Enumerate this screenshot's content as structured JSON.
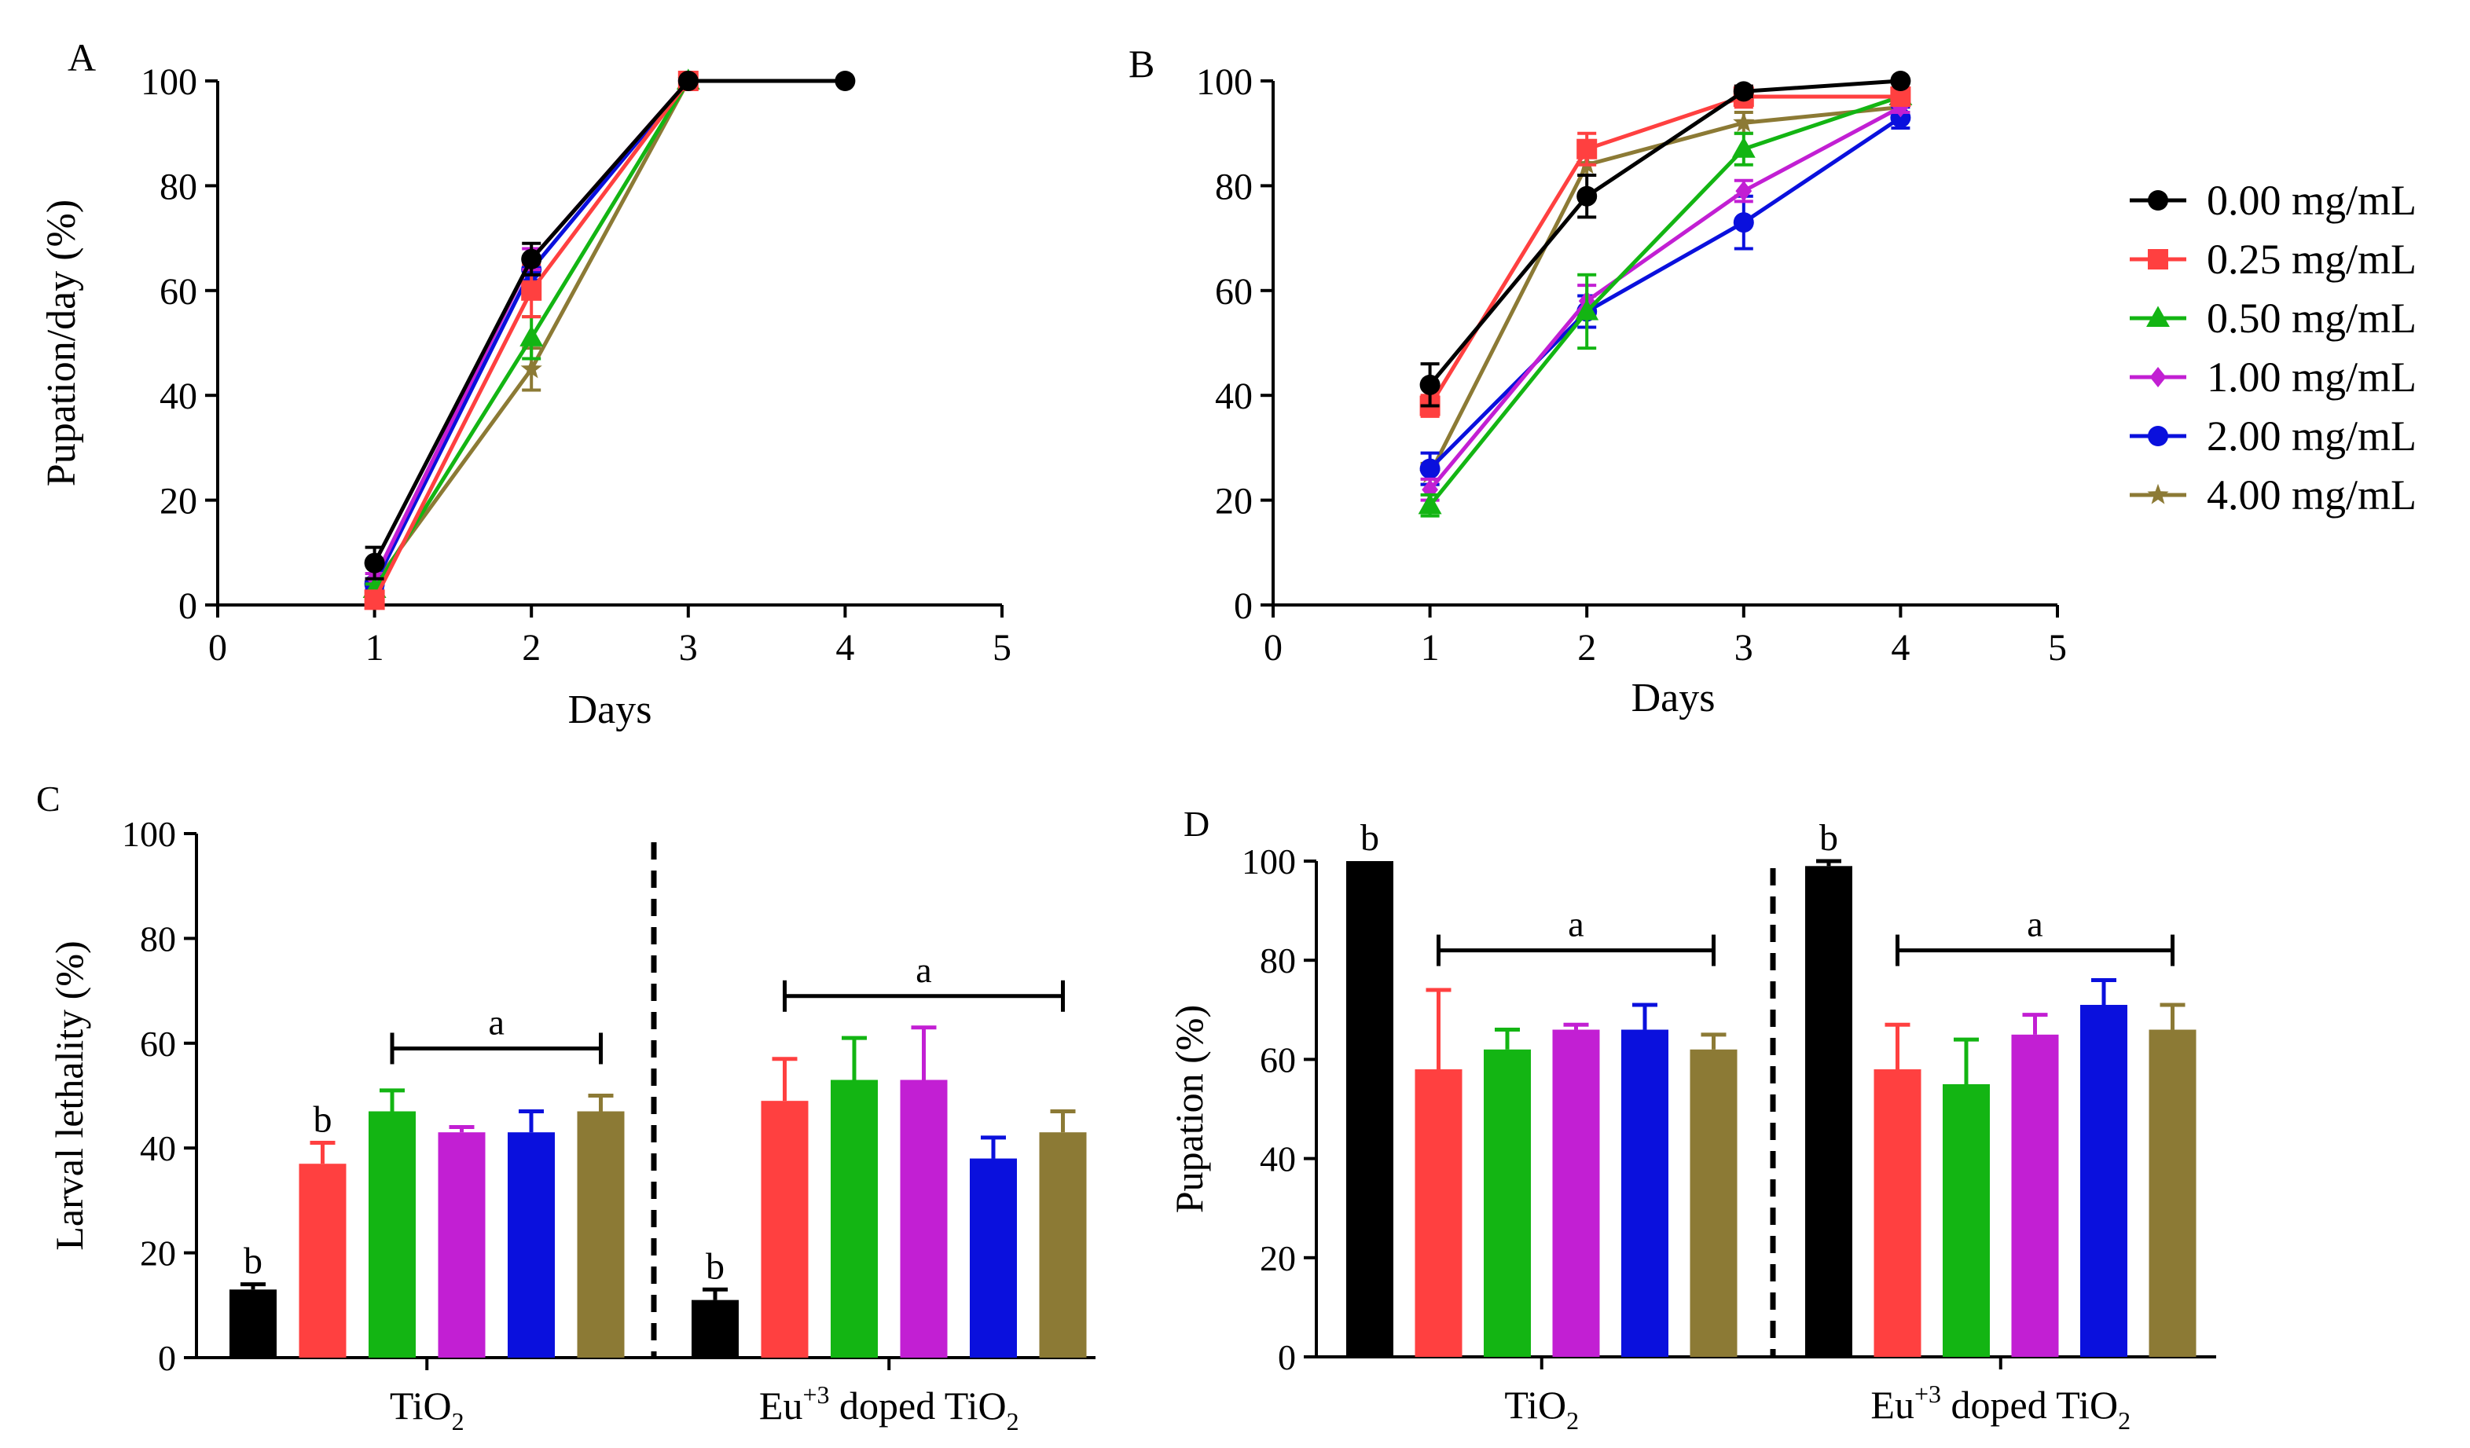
{
  "colors": {
    "0.00 mg/mL": "#000000",
    "0.25 mg/mL": "#ff4040",
    "0.50 mg/mL": "#13b513",
    "1.00 mg/mL": "#c21fd3",
    "2.00 mg/mL": "#0a10dd",
    "4.00 mg/mL": "#8c7a35"
  },
  "legend": {
    "entries": [
      {
        "label": "0.00 mg/mL",
        "marker": "circle"
      },
      {
        "label": "0.25 mg/mL",
        "marker": "square"
      },
      {
        "label": "0.50 mg/mL",
        "marker": "triangle"
      },
      {
        "label": "1.00 mg/mL",
        "marker": "diamond"
      },
      {
        "label": "2.00 mg/mL",
        "marker": "circle"
      },
      {
        "label": "4.00 mg/mL",
        "marker": "star"
      }
    ]
  },
  "chart_data": [
    {
      "panel": "A",
      "type": "line",
      "xlabel": "Days",
      "ylabel": "Pupation/day (%)",
      "xlim": [
        0,
        5
      ],
      "ylim": [
        0,
        100
      ],
      "xticks": [
        0,
        1,
        2,
        3,
        4,
        5
      ],
      "yticks": [
        0,
        20,
        40,
        60,
        80,
        100
      ],
      "series": [
        {
          "name": "0.00 mg/mL",
          "x": [
            1,
            2,
            3,
            4
          ],
          "values": [
            8,
            66,
            100,
            100
          ],
          "err": [
            3,
            3,
            0,
            0
          ]
        },
        {
          "name": "0.25 mg/mL",
          "x": [
            1,
            2,
            3
          ],
          "values": [
            1,
            60,
            100
          ],
          "err": [
            1,
            5,
            0
          ]
        },
        {
          "name": "0.50 mg/mL",
          "x": [
            1,
            2,
            3
          ],
          "values": [
            3,
            51,
            100
          ],
          "err": [
            1,
            4,
            0
          ]
        },
        {
          "name": "1.00 mg/mL",
          "x": [
            1,
            2,
            3
          ],
          "values": [
            5,
            66,
            100
          ],
          "err": [
            1,
            2,
            0
          ]
        },
        {
          "name": "2.00 mg/mL",
          "x": [
            1,
            2,
            3
          ],
          "values": [
            4,
            64,
            100
          ],
          "err": [
            1,
            2,
            0
          ]
        },
        {
          "name": "4.00 mg/mL",
          "x": [
            1,
            2,
            3
          ],
          "values": [
            4,
            45,
            100
          ],
          "err": [
            1,
            4,
            0
          ]
        }
      ]
    },
    {
      "panel": "B",
      "type": "line",
      "xlabel": "Days",
      "ylabel": "",
      "xlim": [
        0,
        5
      ],
      "ylim": [
        0,
        100
      ],
      "xticks": [
        0,
        1,
        2,
        3,
        4,
        5
      ],
      "yticks": [
        0,
        20,
        40,
        60,
        80,
        100
      ],
      "series": [
        {
          "name": "0.00 mg/mL",
          "x": [
            1,
            2,
            3,
            4
          ],
          "values": [
            42,
            78,
            98,
            100
          ],
          "err": [
            4,
            4,
            1,
            0
          ]
        },
        {
          "name": "0.25 mg/mL",
          "x": [
            1,
            2,
            3,
            4
          ],
          "values": [
            38,
            87,
            97,
            97
          ],
          "err": [
            2,
            3,
            2,
            1
          ]
        },
        {
          "name": "0.50 mg/mL",
          "x": [
            1,
            2,
            3,
            4
          ],
          "values": [
            19,
            56,
            87,
            97
          ],
          "err": [
            2,
            7,
            3,
            1
          ]
        },
        {
          "name": "1.00 mg/mL",
          "x": [
            1,
            2,
            3,
            4
          ],
          "values": [
            22,
            58,
            79,
            95
          ],
          "err": [
            2,
            3,
            2,
            1
          ]
        },
        {
          "name": "2.00 mg/mL",
          "x": [
            1,
            2,
            3,
            4
          ],
          "values": [
            26,
            56,
            73,
            93
          ],
          "err": [
            3,
            3,
            5,
            2
          ]
        },
        {
          "name": "4.00 mg/mL",
          "x": [
            1,
            2,
            3,
            4
          ],
          "values": [
            25,
            84,
            92,
            95
          ],
          "err": [
            2,
            2,
            2,
            1
          ]
        }
      ]
    },
    {
      "panel": "C",
      "type": "bar",
      "ylabel": "Larval lethality (%)",
      "ylim": [
        0,
        100
      ],
      "yticks": [
        0,
        20,
        40,
        60,
        80,
        100
      ],
      "groups": [
        "TiO2",
        "Eu+3 doped TiO2"
      ],
      "group_labels": [
        {
          "main": "TiO",
          "sub": "2"
        },
        {
          "main": "Eu",
          "sup": "+3",
          "rest": " doped TiO",
          "sub": "2"
        }
      ],
      "series": [
        "0.00 mg/mL",
        "0.25 mg/mL",
        "0.50 mg/mL",
        "1.00 mg/mL",
        "2.00 mg/mL",
        "4.00 mg/mL"
      ],
      "values": [
        [
          13,
          37,
          47,
          43,
          43,
          47
        ],
        [
          11,
          49,
          53,
          53,
          38,
          43
        ]
      ],
      "err": [
        [
          1,
          4,
          4,
          1,
          4,
          3
        ],
        [
          2,
          8,
          8,
          10,
          4,
          4
        ]
      ],
      "letters": [
        [
          "b",
          "b",
          "",
          "",
          "",
          ""
        ],
        [
          "b",
          "",
          "",
          "",
          "",
          ""
        ]
      ],
      "brackets": [
        {
          "group": 0,
          "from": 2,
          "to": 5,
          "label": "a",
          "y": 59
        },
        {
          "group": 1,
          "from": 1,
          "to": 5,
          "label": "a",
          "y": 69
        }
      ]
    },
    {
      "panel": "D",
      "type": "bar",
      "ylabel": "Pupation (%)",
      "ylim": [
        0,
        100
      ],
      "yticks": [
        0,
        20,
        40,
        60,
        80,
        100
      ],
      "groups": [
        "TiO2",
        "Eu+3 doped TiO2"
      ],
      "group_labels": [
        {
          "main": "TiO",
          "sub": "2"
        },
        {
          "main": "Eu",
          "sup": "+3",
          "rest": " doped TiO",
          "sub": "2"
        }
      ],
      "series": [
        "0.00 mg/mL",
        "0.25 mg/mL",
        "0.50 mg/mL",
        "1.00 mg/mL",
        "2.00 mg/mL",
        "4.00 mg/mL"
      ],
      "values": [
        [
          100,
          58,
          62,
          66,
          66,
          62
        ],
        [
          99,
          58,
          55,
          65,
          71,
          66
        ]
      ],
      "err": [
        [
          0,
          16,
          4,
          1,
          5,
          3
        ],
        [
          1,
          9,
          9,
          4,
          5,
          5
        ]
      ],
      "letters": [
        [
          "b",
          "",
          "",
          "",
          "",
          ""
        ],
        [
          "b",
          "",
          "",
          "",
          "",
          ""
        ]
      ],
      "brackets": [
        {
          "group": 0,
          "from": 1,
          "to": 5,
          "label": "a",
          "y": 82
        },
        {
          "group": 1,
          "from": 1,
          "to": 5,
          "label": "a",
          "y": 82
        }
      ]
    }
  ]
}
